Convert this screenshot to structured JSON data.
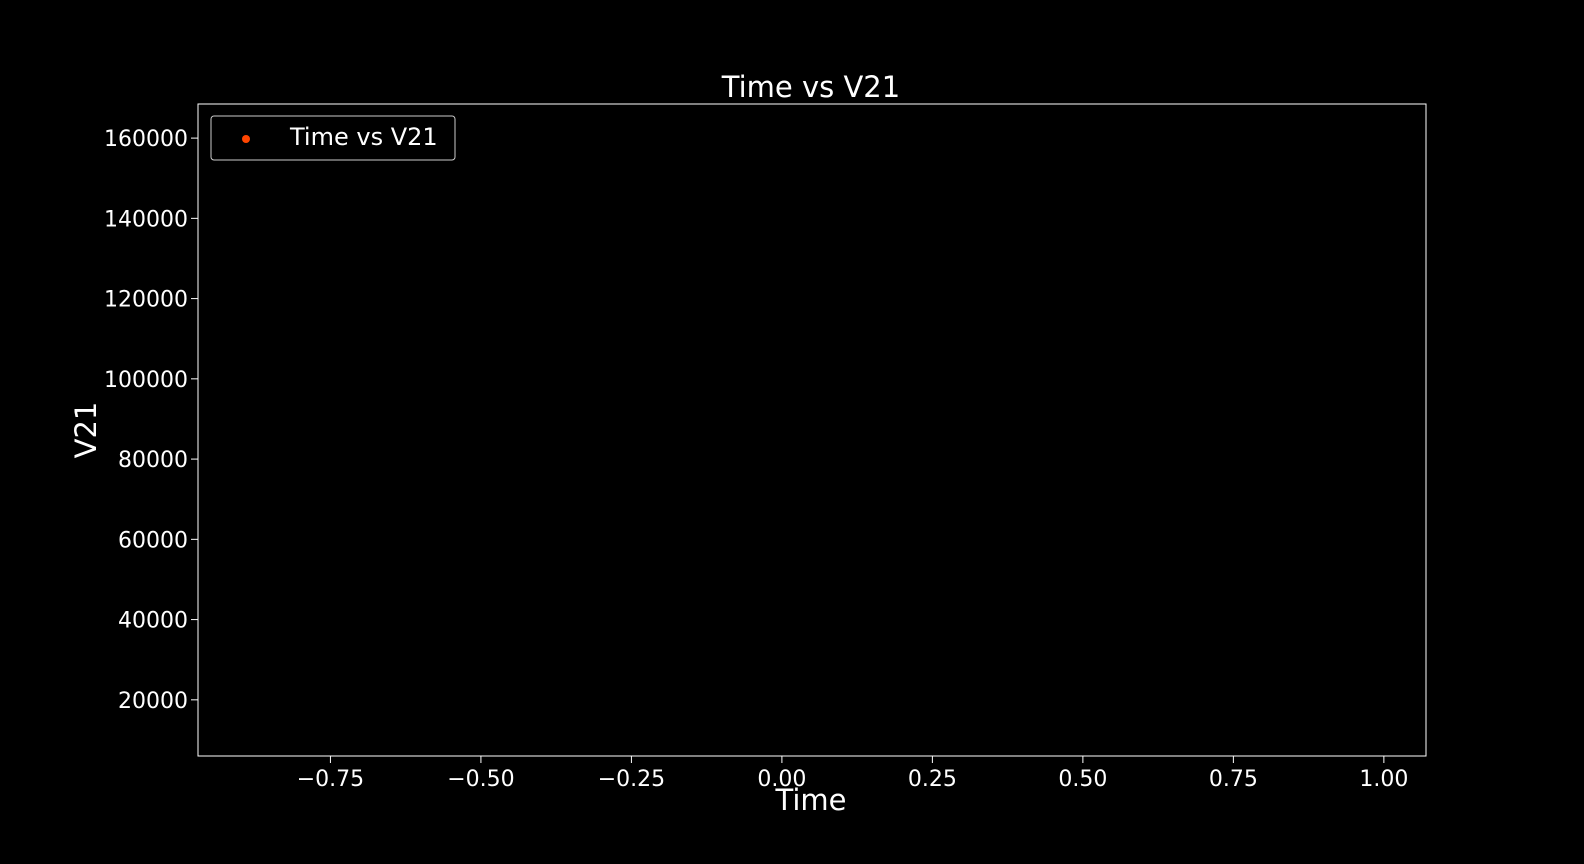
{
  "chart_data": {
    "type": "scatter",
    "title": "Time vs V21",
    "xlabel": "Time",
    "ylabel": "V21",
    "xlim": [
      -0.97,
      1.07
    ],
    "ylim": [
      6000,
      168500
    ],
    "x_ticks": [
      -0.75,
      -0.5,
      -0.25,
      0.0,
      0.25,
      0.5,
      0.75,
      1.0
    ],
    "x_tick_labels": [
      "−0.75",
      "−0.50",
      "−0.25",
      "0.00",
      "0.25",
      "0.50",
      "0.75",
      "1.00"
    ],
    "y_ticks": [
      20000,
      40000,
      60000,
      80000,
      100000,
      120000,
      140000,
      160000
    ],
    "y_tick_labels": [
      "20000",
      "40000",
      "60000",
      "80000",
      "100000",
      "120000",
      "140000",
      "160000"
    ],
    "grid": false,
    "legend_position": "top-left",
    "series": [
      {
        "name": "Time vs V21",
        "color": "#ff4500",
        "x": [],
        "y": []
      }
    ]
  },
  "colors": {
    "background": "#000000",
    "foreground": "#ffffff",
    "legend_border": "#cccccc"
  }
}
